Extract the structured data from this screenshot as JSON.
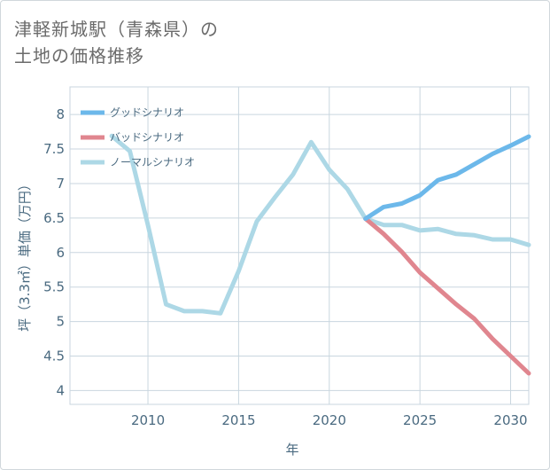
{
  "title": {
    "line1": "津軽新城駅（青森県）の",
    "line2": "土地の価格推移"
  },
  "chart_data": {
    "type": "line",
    "title": "津軽新城駅（青森県）の土地の価格推移",
    "xlabel": "年",
    "ylabel": "坪（3.3㎡）単価（万円）",
    "xlim": [
      2005.7,
      2031
    ],
    "ylim": [
      3.8,
      8.4
    ],
    "xticks": [
      2010,
      2015,
      2020,
      2025,
      2030
    ],
    "yticks": [
      4,
      4.5,
      5,
      5.5,
      6,
      6.5,
      7,
      7.5,
      8
    ],
    "grid": true,
    "legend_position": "top-left",
    "series": [
      {
        "name": "グッドシナリオ",
        "color": "#6cb8ea",
        "x": [
          2022,
          2023,
          2024,
          2025,
          2026,
          2027,
          2028,
          2029,
          2030,
          2031
        ],
        "y": [
          6.49,
          6.66,
          6.71,
          6.83,
          7.05,
          7.13,
          7.28,
          7.43,
          7.55,
          7.68
        ]
      },
      {
        "name": "バッドシナリオ",
        "color": "#e0868f",
        "x": [
          2022,
          2023,
          2024,
          2025,
          2026,
          2027,
          2028,
          2029,
          2030,
          2031
        ],
        "y": [
          6.49,
          6.27,
          6.01,
          5.71,
          5.48,
          5.25,
          5.04,
          4.75,
          4.5,
          4.25
        ]
      },
      {
        "name": "ノーマルシナリオ",
        "color": "#add8e6",
        "x": [
          2008,
          2009,
          2010,
          2011,
          2012,
          2013,
          2014,
          2015,
          2016,
          2017,
          2018,
          2019,
          2020,
          2021,
          2022,
          2023,
          2024,
          2025,
          2026,
          2027,
          2028,
          2029,
          2030,
          2031
        ],
        "y": [
          7.69,
          7.47,
          6.4,
          5.25,
          5.15,
          5.15,
          5.12,
          5.73,
          6.45,
          6.8,
          7.13,
          7.6,
          7.2,
          6.92,
          6.49,
          6.4,
          6.4,
          6.32,
          6.34,
          6.27,
          6.25,
          6.19,
          6.19,
          6.11
        ]
      }
    ]
  }
}
